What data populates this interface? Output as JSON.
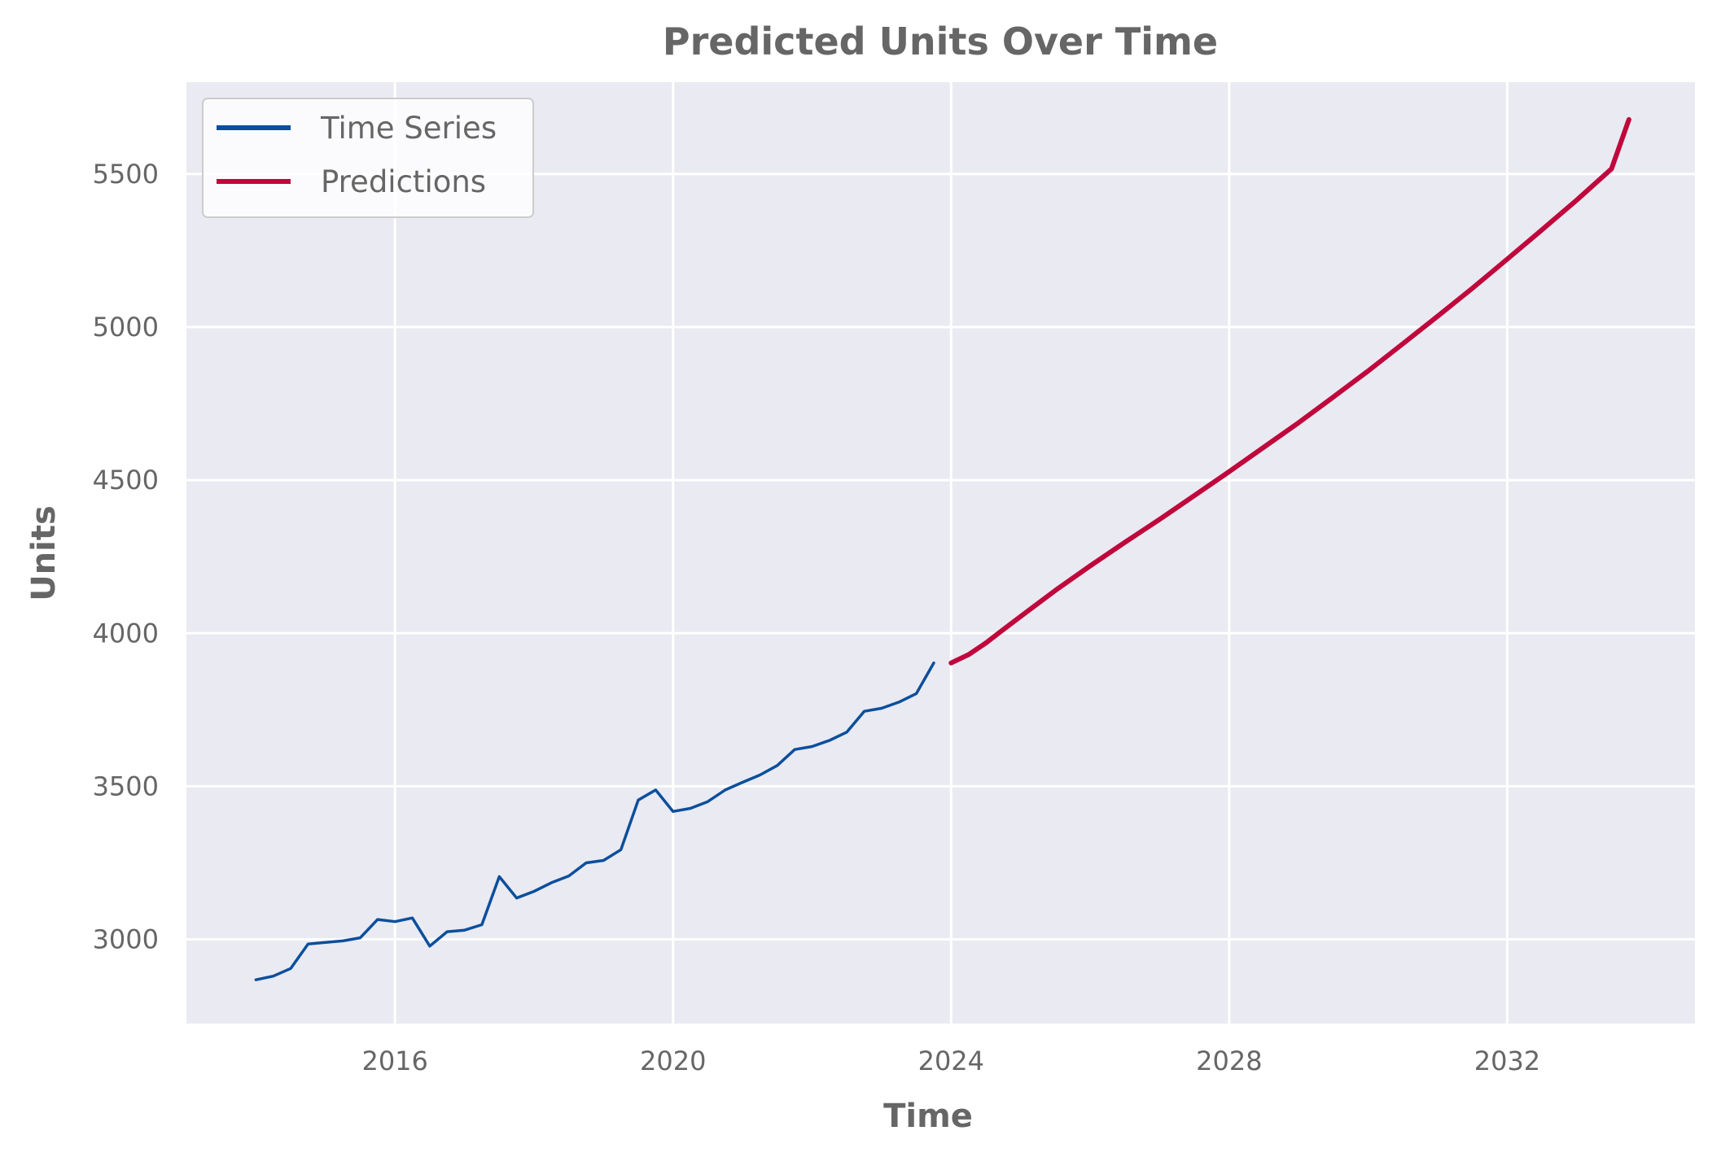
{
  "chart_data": {
    "type": "line",
    "title": "Predicted Units Over Time",
    "xlabel": "Time",
    "ylabel": "Units",
    "xlim": [
      2013.0,
      2034.7
    ],
    "ylim": [
      2725,
      5800
    ],
    "x_ticks": [
      2016,
      2020,
      2024,
      2028,
      2032
    ],
    "x_tick_labels": [
      "2016",
      "2020",
      "2024",
      "2028",
      "2032"
    ],
    "y_ticks": [
      3000,
      3500,
      4000,
      4500,
      5000,
      5500
    ],
    "y_tick_labels": [
      "3000",
      "3500",
      "4000",
      "4500",
      "5000",
      "5500"
    ],
    "grid": true,
    "legend_position": "upper-left",
    "background": "#eaeaf2",
    "series": [
      {
        "name": "Time Series",
        "color": "#0b4f9c",
        "x": [
          2014.0,
          2014.25,
          2014.5,
          2014.75,
          2015.0,
          2015.25,
          2015.5,
          2015.75,
          2016.0,
          2016.25,
          2016.5,
          2016.75,
          2017.0,
          2017.25,
          2017.5,
          2017.75,
          2018.0,
          2018.25,
          2018.5,
          2018.75,
          2019.0,
          2019.25,
          2019.5,
          2019.75,
          2020.0,
          2020.25,
          2020.5,
          2020.75,
          2021.0,
          2021.25,
          2021.5,
          2021.75,
          2022.0,
          2022.25,
          2022.5,
          2022.75,
          2023.0,
          2023.25,
          2023.5,
          2023.75
        ],
        "values": [
          2868,
          2880,
          2905,
          2985,
          2990,
          2995,
          3005,
          3065,
          3058,
          3070,
          2978,
          3025,
          3030,
          3048,
          3205,
          3135,
          3157,
          3185,
          3207,
          3250,
          3258,
          3293,
          3455,
          3488,
          3418,
          3428,
          3450,
          3488,
          3513,
          3537,
          3568,
          3620,
          3630,
          3650,
          3677,
          3745,
          3755,
          3775,
          3803,
          3903
        ]
      },
      {
        "name": "Predictions",
        "color": "#c0073c",
        "x": [
          2024.0,
          2024.25,
          2024.5,
          2024.75,
          2025.0,
          2025.5,
          2026.0,
          2026.5,
          2027.0,
          2027.5,
          2028.0,
          2028.5,
          2029.0,
          2029.5,
          2030.0,
          2030.5,
          2031.0,
          2031.5,
          2032.0,
          2032.5,
          2033.0,
          2033.5,
          2033.75
        ],
        "values": [
          3903,
          3930,
          3968,
          4012,
          4055,
          4140,
          4220,
          4297,
          4372,
          4450,
          4528,
          4608,
          4688,
          4772,
          4857,
          4946,
          5036,
          5127,
          5222,
          5318,
          5415,
          5517,
          5678
        ]
      }
    ]
  }
}
